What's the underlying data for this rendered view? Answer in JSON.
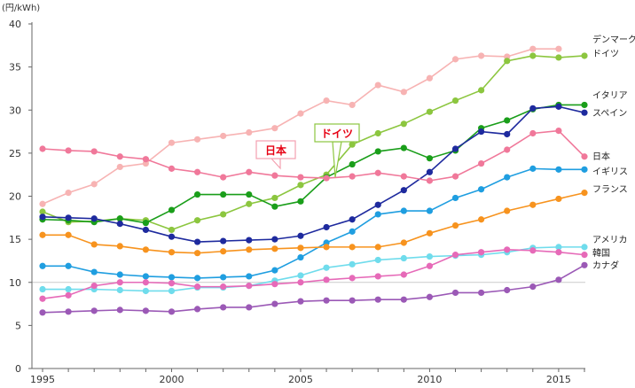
{
  "chart_data": {
    "type": "line",
    "unit_label": "(円/kWh)",
    "x": [
      1995,
      1996,
      1997,
      1998,
      1999,
      2000,
      2001,
      2002,
      2003,
      2004,
      2005,
      2006,
      2007,
      2008,
      2009,
      2010,
      2011,
      2012,
      2013,
      2014,
      2015,
      2016
    ],
    "x_ticks": [
      "1995",
      "2000",
      "2005",
      "2010",
      "2015"
    ],
    "y_ticks": [
      "0",
      "5",
      "10",
      "15",
      "20",
      "25",
      "30",
      "35",
      "40"
    ],
    "ylim": [
      0,
      40
    ],
    "xlim": [
      1995,
      2016
    ],
    "grid": false,
    "reference_line": 10,
    "series": [
      {
        "name": "デンマーク",
        "color": "#f7b3b3",
        "values": [
          19.1,
          20.4,
          21.4,
          23.4,
          23.8,
          26.2,
          26.6,
          27.0,
          27.4,
          27.9,
          29.6,
          31.1,
          30.6,
          32.9,
          32.1,
          33.7,
          35.9,
          36.3,
          36.2,
          37.1,
          37.1,
          null
        ]
      },
      {
        "name": "ドイツ",
        "color": "#8cc63f",
        "values": [
          18.2,
          17.0,
          17.1,
          17.4,
          17.2,
          16.1,
          17.2,
          17.9,
          19.1,
          19.8,
          21.3,
          22.5,
          26.0,
          27.3,
          28.4,
          29.8,
          31.1,
          32.3,
          35.7,
          36.3,
          36.1,
          36.3
        ]
      },
      {
        "name": "イタリア",
        "color": "#1a9e1a",
        "values": [
          17.3,
          17.2,
          17.0,
          17.4,
          16.9,
          18.4,
          20.2,
          20.2,
          20.2,
          18.8,
          19.4,
          22.2,
          23.7,
          25.2,
          25.6,
          24.4,
          25.3,
          27.9,
          28.8,
          30.1,
          30.6,
          30.6
        ]
      },
      {
        "name": "スペイン",
        "color": "#1e2a9e",
        "values": [
          17.6,
          17.5,
          17.4,
          16.8,
          16.1,
          15.3,
          14.7,
          14.8,
          14.9,
          15.0,
          15.4,
          16.4,
          17.3,
          19.0,
          20.7,
          22.8,
          25.5,
          27.5,
          27.2,
          30.2,
          30.4,
          29.7
        ]
      },
      {
        "name": "日本",
        "color": "#f0789a",
        "values": [
          25.5,
          25.3,
          25.2,
          24.6,
          24.3,
          23.2,
          22.8,
          22.2,
          22.8,
          22.4,
          22.2,
          22.1,
          22.3,
          22.7,
          22.3,
          21.8,
          22.3,
          23.8,
          25.4,
          27.3,
          27.6,
          24.6
        ]
      },
      {
        "name": "イギリス",
        "color": "#1f9ee0",
        "values": [
          11.9,
          11.9,
          11.2,
          10.9,
          10.7,
          10.6,
          10.5,
          10.6,
          10.7,
          11.4,
          12.9,
          14.6,
          15.9,
          17.9,
          18.3,
          18.3,
          19.8,
          20.8,
          22.2,
          23.2,
          23.1,
          23.1
        ]
      },
      {
        "name": "フランス",
        "color": "#f7931e",
        "values": [
          15.5,
          15.5,
          14.4,
          14.2,
          13.8,
          13.5,
          13.4,
          13.6,
          13.8,
          13.9,
          14.0,
          14.1,
          14.1,
          14.1,
          14.6,
          15.7,
          16.6,
          17.3,
          18.3,
          19.0,
          19.7,
          20.4
        ]
      },
      {
        "name": "アメリカ",
        "color": "#6fdcec",
        "values": [
          9.2,
          9.2,
          9.2,
          9.1,
          9.0,
          9.0,
          9.4,
          9.4,
          9.6,
          10.2,
          10.8,
          11.7,
          12.1,
          12.6,
          12.8,
          13.0,
          13.1,
          13.2,
          13.5,
          14.0,
          14.1,
          14.1
        ]
      },
      {
        "name": "韓国",
        "color": "#e66ab8",
        "values": [
          8.1,
          8.5,
          9.6,
          10.0,
          10.0,
          9.9,
          9.5,
          9.5,
          9.6,
          9.8,
          10.0,
          10.3,
          10.5,
          10.7,
          10.9,
          11.9,
          13.2,
          13.5,
          13.8,
          13.7,
          13.5,
          13.2
        ]
      },
      {
        "name": "カナダ",
        "color": "#9b59b6",
        "values": [
          6.5,
          6.6,
          6.7,
          6.8,
          6.7,
          6.6,
          6.9,
          7.1,
          7.1,
          7.5,
          7.8,
          7.9,
          7.9,
          8.0,
          8.0,
          8.3,
          8.8,
          8.8,
          9.1,
          9.5,
          10.3,
          12.0
        ]
      }
    ],
    "callouts": [
      {
        "text": "日本",
        "color": "#e60012",
        "border": "#f4a0b0"
      },
      {
        "text": "ドイツ",
        "color": "#e60012",
        "border": "#8cc63f"
      }
    ],
    "legend_labels": [
      "デンマーク",
      "ドイツ",
      "イタリア",
      "スペイン",
      "日本",
      "イギリス",
      "フランス",
      "アメリカ",
      "韓国",
      "カナダ"
    ]
  }
}
